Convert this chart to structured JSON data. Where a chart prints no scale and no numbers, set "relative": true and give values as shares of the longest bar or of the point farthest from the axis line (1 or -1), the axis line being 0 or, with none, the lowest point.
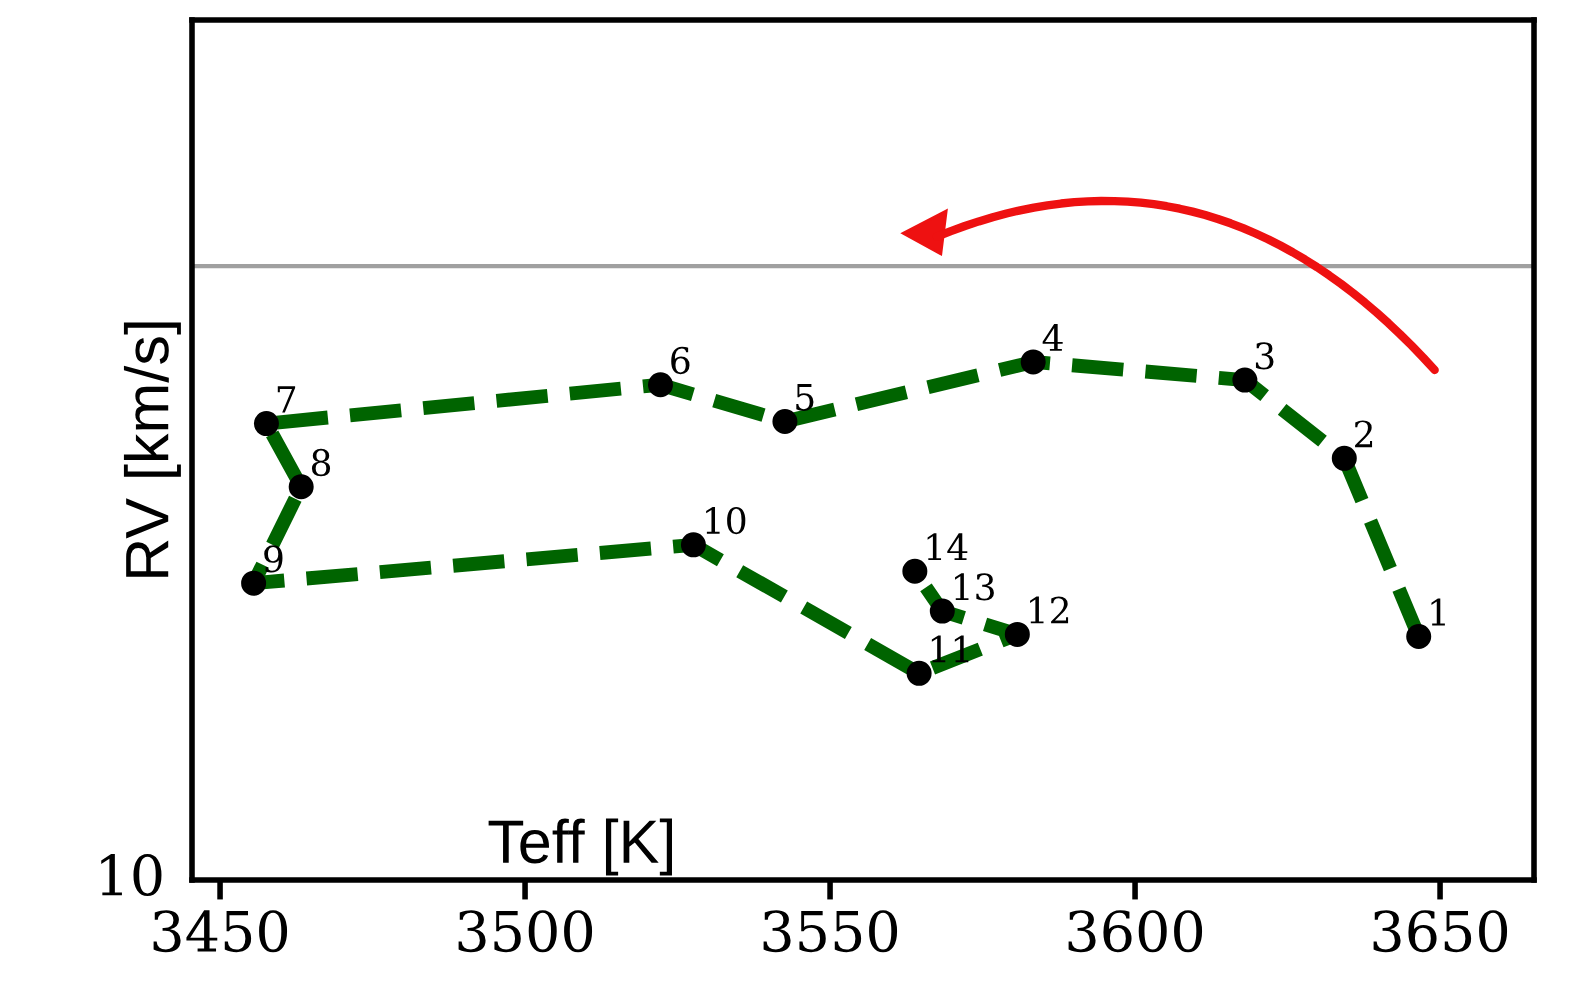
{
  "chart_data": {
    "type": "line",
    "xlabel": "Teff [K]",
    "ylabel": "RV [km/s]",
    "relative": true,
    "x": [
      3646.5,
      3634.3,
      3618.0,
      3583.3,
      3542.6,
      3522.2,
      3457.6,
      3463.3,
      3455.5,
      3527.6,
      3564.6,
      3580.7,
      3568.4,
      3563.9
    ],
    "series": [
      {
        "color": "#006400",
        "values": [
          0.47,
          0.814,
          0.965,
          1,
          0.885,
          0.956,
          0.881,
          0.759,
          0.573,
          0.647,
          0.399,
          0.474,
          0.519,
          0.596
        ]
      }
    ],
    "marker": "circle",
    "line_style": "dashed",
    "grid": false,
    "xlim": [
      3445.4,
      3665.4
    ],
    "xticks": [
      3450,
      3500,
      3550,
      3600,
      3650
    ],
    "ref_lines": [
      {
        "axis": "y",
        "value": 1.185,
        "color": "#a0a0a0"
      }
    ],
    "annotations": [
      "10",
      {
        "text": "1",
        "x": 3646.5,
        "y": 0.47
      },
      {
        "text": "2",
        "x": 3634.3,
        "y": 0.814
      },
      {
        "text": "3",
        "x": 3618.0,
        "y": 0.965
      },
      {
        "text": "4",
        "x": 3583.3,
        "y": 1
      },
      {
        "text": "5",
        "x": 3542.6,
        "y": 0.885
      },
      {
        "text": "6",
        "x": 3522.2,
        "y": 0.956
      },
      {
        "text": "7",
        "x": 3457.6,
        "y": 0.881
      },
      {
        "text": "8",
        "x": 3463.3,
        "y": 0.759
      },
      {
        "text": "9",
        "x": 3455.5,
        "y": 0.573
      },
      {
        "text": "10",
        "x": 3527.6,
        "y": 0.647
      },
      {
        "text": "11",
        "x": 3564.6,
        "y": 0.399
      },
      {
        "text": "12",
        "x": 3580.7,
        "y": 0.474
      },
      {
        "text": "13",
        "x": 3568.4,
        "y": 0.519
      },
      {
        "text": "14",
        "x": 3563.9,
        "y": 0.596
      }
    ]
  }
}
